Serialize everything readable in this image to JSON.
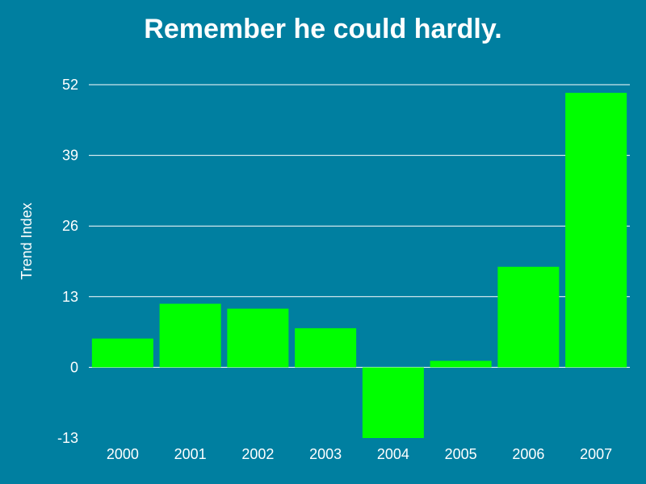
{
  "chart_data": {
    "type": "bar",
    "title": "Remember he could hardly.",
    "xlabel": "",
    "ylabel": "Trend Index",
    "categories": [
      "2000",
      "2001",
      "2002",
      "2003",
      "2004",
      "2005",
      "2006",
      "2007"
    ],
    "values": [
      5.3,
      11.7,
      10.8,
      7.2,
      -13,
      1.2,
      18.5,
      50.5
    ],
    "ylim": [
      -13,
      52
    ],
    "yticks": [
      -13,
      0,
      13,
      26,
      39,
      52
    ],
    "grid": true,
    "legend": "none",
    "colors": {
      "background": "#007fa0",
      "bar": "#00ff00",
      "text": "#ffffff",
      "grid": "#ffffff"
    }
  }
}
